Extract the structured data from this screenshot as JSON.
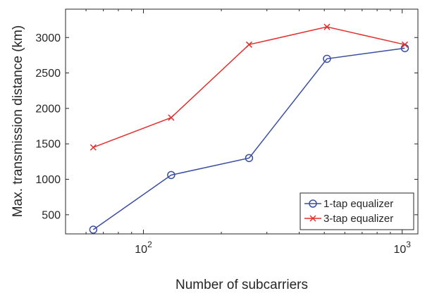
{
  "chart_data": {
    "type": "line",
    "xscale": "log",
    "x": [
      64,
      128,
      256,
      512,
      1024
    ],
    "xlim": [
      50,
      1150
    ],
    "ylim": [
      230,
      3400
    ],
    "xticks": [
      {
        "value": 100,
        "base": "10",
        "exp": "2"
      },
      {
        "value": 1000,
        "base": "10",
        "exp": "3"
      }
    ],
    "yticks": [
      500,
      1000,
      1500,
      2000,
      2500,
      3000
    ],
    "xlabel": "Number of subcarriers",
    "ylabel": "Max. transmission distance (km)",
    "grid": false,
    "legend_position": "bottom-right",
    "series": [
      {
        "name": "1-tap equalizer",
        "marker": "circle",
        "color": "#3a4ea0",
        "values": [
          290,
          1060,
          1300,
          2700,
          2850
        ]
      },
      {
        "name": "3-tap equalizer",
        "marker": "x",
        "color": "#e0302e",
        "values": [
          1450,
          1870,
          2900,
          3150,
          2900
        ]
      }
    ]
  }
}
